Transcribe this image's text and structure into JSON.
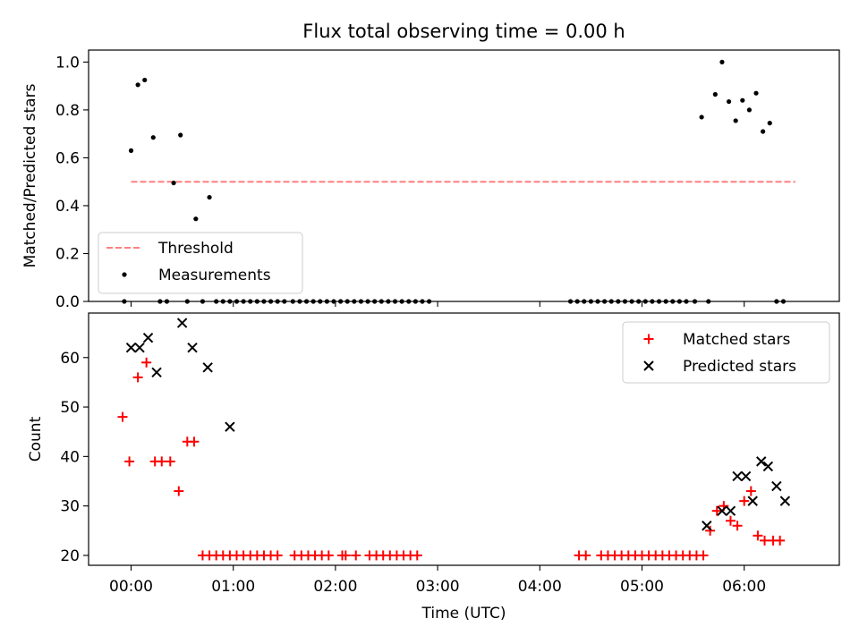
{
  "chart_data": [
    {
      "type": "scatter",
      "title": "Flux total observing time = 0.00 h",
      "ylabel": "Matched/Predicted stars",
      "xlabel": "",
      "ylim": [
        0,
        1.05
      ],
      "yticks": [
        "0.0",
        "0.2",
        "0.4",
        "0.6",
        "0.8",
        "1.0"
      ],
      "grid": false,
      "legend_position": "lower-left",
      "threshold": {
        "name": "Threshold",
        "value": 0.5,
        "x_range": [
          "00:00",
          "06:30"
        ],
        "color": "#ff7f7f",
        "style": "dashed"
      },
      "series": [
        {
          "name": "Measurements",
          "color": "#000000",
          "marker": "dot",
          "points": [
            [
              "23:56",
              0.0
            ],
            [
              "00:00",
              0.63
            ],
            [
              "00:04",
              0.905
            ],
            [
              "00:08",
              0.925
            ],
            [
              "00:13",
              0.685
            ],
            [
              "00:17",
              0.0
            ],
            [
              "00:21",
              0.0
            ],
            [
              "00:25",
              0.495
            ],
            [
              "00:29",
              0.695
            ],
            [
              "00:33",
              0.0
            ],
            [
              "00:38",
              0.345
            ],
            [
              "00:42",
              0.0
            ],
            [
              "00:46",
              0.435
            ],
            [
              "00:50",
              0.0
            ],
            [
              "00:54",
              0.0
            ],
            [
              "00:58",
              0.0
            ],
            [
              "01:02",
              0.0
            ],
            [
              "01:06",
              0.0
            ],
            [
              "01:10",
              0.0
            ],
            [
              "01:14",
              0.0
            ],
            [
              "01:18",
              0.0
            ],
            [
              "01:22",
              0.0
            ],
            [
              "01:26",
              0.0
            ],
            [
              "01:30",
              0.0
            ],
            [
              "01:35",
              0.0
            ],
            [
              "01:39",
              0.0
            ],
            [
              "01:43",
              0.0
            ],
            [
              "01:47",
              0.0
            ],
            [
              "01:51",
              0.0
            ],
            [
              "01:55",
              0.0
            ],
            [
              "01:59",
              0.0
            ],
            [
              "02:03",
              0.0
            ],
            [
              "02:07",
              0.0
            ],
            [
              "02:11",
              0.0
            ],
            [
              "02:15",
              0.0
            ],
            [
              "02:19",
              0.0
            ],
            [
              "02:23",
              0.0
            ],
            [
              "02:27",
              0.0
            ],
            [
              "02:31",
              0.0
            ],
            [
              "02:35",
              0.0
            ],
            [
              "02:39",
              0.0
            ],
            [
              "02:43",
              0.0
            ],
            [
              "02:47",
              0.0
            ],
            [
              "02:51",
              0.0
            ],
            [
              "02:55",
              0.0
            ],
            [
              "04:18",
              0.0
            ],
            [
              "04:22",
              0.0
            ],
            [
              "04:26",
              0.0
            ],
            [
              "04:30",
              0.0
            ],
            [
              "04:34",
              0.0
            ],
            [
              "04:38",
              0.0
            ],
            [
              "04:42",
              0.0
            ],
            [
              "04:46",
              0.0
            ],
            [
              "04:50",
              0.0
            ],
            [
              "04:54",
              0.0
            ],
            [
              "04:58",
              0.0
            ],
            [
              "05:02",
              0.0
            ],
            [
              "05:06",
              0.0
            ],
            [
              "05:10",
              0.0
            ],
            [
              "05:14",
              0.0
            ],
            [
              "05:18",
              0.0
            ],
            [
              "05:22",
              0.0
            ],
            [
              "05:26",
              0.0
            ],
            [
              "05:31",
              0.0
            ],
            [
              "05:35",
              0.77
            ],
            [
              "05:39",
              0.0
            ],
            [
              "05:43",
              0.865
            ],
            [
              "05:47",
              1.0
            ],
            [
              "05:51",
              0.835
            ],
            [
              "05:55",
              0.755
            ],
            [
              "05:59",
              0.84
            ],
            [
              "06:03",
              0.8
            ],
            [
              "06:07",
              0.87
            ],
            [
              "06:11",
              0.71
            ],
            [
              "06:15",
              0.745
            ],
            [
              "06:19",
              0.0
            ],
            [
              "06:23",
              0.0
            ]
          ]
        }
      ]
    },
    {
      "type": "scatter",
      "title": "",
      "ylabel": "Count",
      "xlabel": "Time (UTC)",
      "ylim": [
        18,
        69
      ],
      "yticks": [
        "20",
        "30",
        "40",
        "50",
        "60"
      ],
      "xticks": [
        "00:00",
        "01:00",
        "02:00",
        "03:00",
        "04:00",
        "05:00",
        "06:00"
      ],
      "grid": false,
      "legend_position": "upper-right",
      "series": [
        {
          "name": "Matched stars",
          "color": "#ff0000",
          "marker": "plus",
          "points": [
            [
              "23:55",
              48
            ],
            [
              "23:59",
              39
            ],
            [
              "00:04",
              56
            ],
            [
              "00:09",
              59
            ],
            [
              "00:14",
              39
            ],
            [
              "00:18",
              39
            ],
            [
              "00:23",
              39
            ],
            [
              "00:28",
              33
            ],
            [
              "00:33",
              43
            ],
            [
              "00:37",
              43
            ],
            [
              "00:42",
              20
            ],
            [
              "00:46",
              20
            ],
            [
              "00:50",
              20
            ],
            [
              "00:54",
              20
            ],
            [
              "00:58",
              20
            ],
            [
              "01:02",
              20
            ],
            [
              "01:06",
              20
            ],
            [
              "01:10",
              20
            ],
            [
              "01:14",
              20
            ],
            [
              "01:18",
              20
            ],
            [
              "01:22",
              20
            ],
            [
              "01:26",
              20
            ],
            [
              "01:36",
              20
            ],
            [
              "01:40",
              20
            ],
            [
              "01:44",
              20
            ],
            [
              "01:48",
              20
            ],
            [
              "01:52",
              20
            ],
            [
              "01:56",
              20
            ],
            [
              "02:04",
              20
            ],
            [
              "02:06",
              20
            ],
            [
              "02:12",
              20
            ],
            [
              "02:20",
              20
            ],
            [
              "02:24",
              20
            ],
            [
              "02:28",
              20
            ],
            [
              "02:32",
              20
            ],
            [
              "02:36",
              20
            ],
            [
              "02:40",
              20
            ],
            [
              "02:44",
              20
            ],
            [
              "02:48",
              20
            ],
            [
              "04:23",
              20
            ],
            [
              "04:27",
              20
            ],
            [
              "04:36",
              20
            ],
            [
              "04:40",
              20
            ],
            [
              "04:44",
              20
            ],
            [
              "04:48",
              20
            ],
            [
              "04:52",
              20
            ],
            [
              "04:56",
              20
            ],
            [
              "05:00",
              20
            ],
            [
              "05:04",
              20
            ],
            [
              "05:08",
              20
            ],
            [
              "05:12",
              20
            ],
            [
              "05:16",
              20
            ],
            [
              "05:20",
              20
            ],
            [
              "05:24",
              20
            ],
            [
              "05:28",
              20
            ],
            [
              "05:32",
              20
            ],
            [
              "05:36",
              20
            ],
            [
              "05:40",
              25
            ],
            [
              "05:44",
              29
            ],
            [
              "05:48",
              30
            ],
            [
              "05:52",
              27
            ],
            [
              "05:56",
              26
            ],
            [
              "06:00",
              31
            ],
            [
              "06:04",
              33
            ],
            [
              "06:08",
              24
            ],
            [
              "06:12",
              23
            ],
            [
              "06:17",
              23
            ],
            [
              "06:21",
              23
            ]
          ]
        },
        {
          "name": "Predicted stars",
          "color": "#000000",
          "marker": "x",
          "points": [
            [
              "00:00",
              62
            ],
            [
              "00:05",
              62
            ],
            [
              "00:10",
              64
            ],
            [
              "00:15",
              57
            ],
            [
              "00:30",
              67
            ],
            [
              "00:36",
              62
            ],
            [
              "00:45",
              58
            ],
            [
              "00:58",
              46
            ],
            [
              "05:38",
              26
            ],
            [
              "05:47",
              29
            ],
            [
              "05:52",
              29
            ],
            [
              "05:56",
              36
            ],
            [
              "06:01",
              36
            ],
            [
              "06:05",
              31
            ],
            [
              "06:10",
              39
            ],
            [
              "06:14",
              38
            ],
            [
              "06:19",
              34
            ],
            [
              "06:24",
              31
            ]
          ]
        }
      ]
    }
  ]
}
